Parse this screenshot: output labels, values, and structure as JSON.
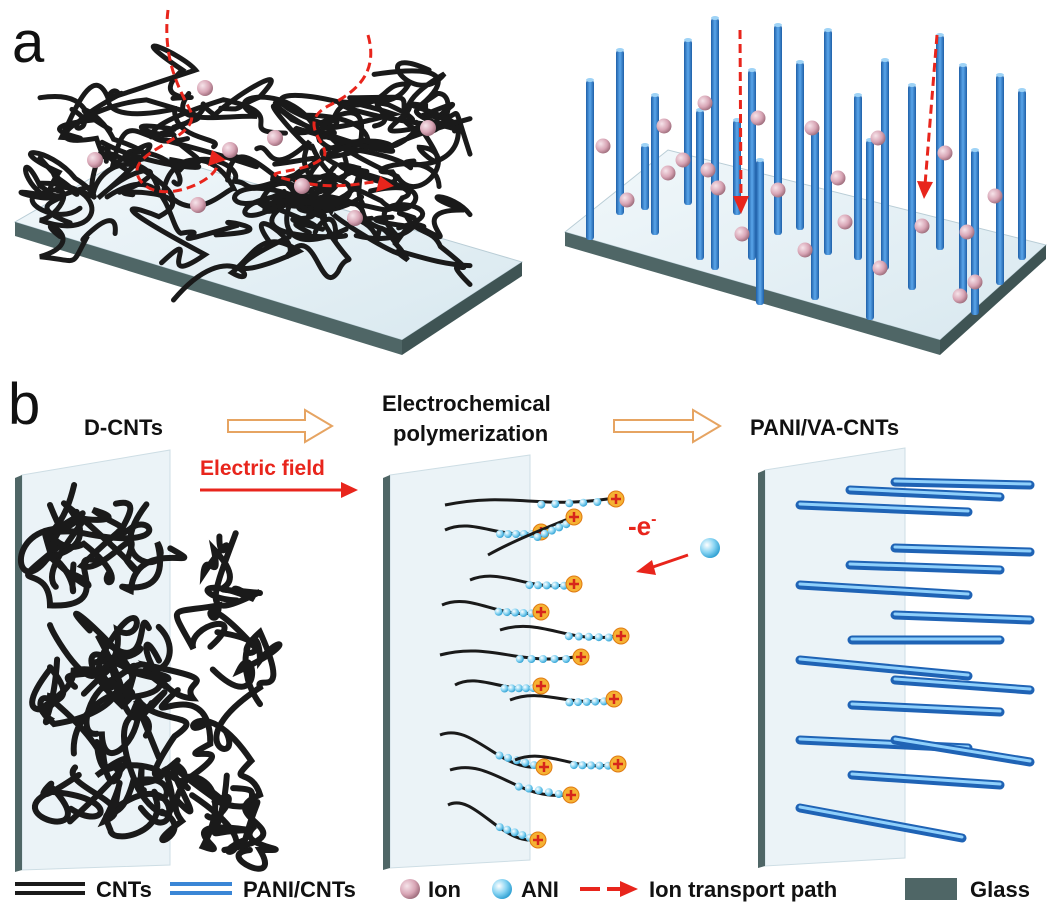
{
  "panels": {
    "a": {
      "letter": "a"
    },
    "b": {
      "letter": "b",
      "step1": "D-CNTs",
      "step2_line1": "Electrochemical",
      "step2_line2": "polymerization",
      "step3": "PANI/VA-CNTs",
      "field_label": "Electric field",
      "electron_label": "-e",
      "electron_sup": "-"
    }
  },
  "legend": {
    "items": [
      {
        "icon": "cnt-line-icon",
        "label": "CNTs"
      },
      {
        "icon": "pani-cnt-line-icon",
        "label": "PANI/CNTs"
      },
      {
        "icon": "ion-sphere-icon",
        "label": "Ion"
      },
      {
        "icon": "ani-sphere-icon",
        "label": "ANI"
      },
      {
        "icon": "dashed-arrow-icon",
        "label": "Ion transport path"
      },
      {
        "icon": "glass-swatch-icon",
        "label": "Glass"
      }
    ]
  },
  "colors": {
    "cnt": "#1a1a1a",
    "pani": "#3a86d6",
    "ion": "#d9a8b8",
    "ani": "#8fd6f2",
    "path": "#e8251c",
    "glass_edge": "#4f6666",
    "glass_face": "#e6f1f7",
    "step_arrow": "#e6a462"
  }
}
